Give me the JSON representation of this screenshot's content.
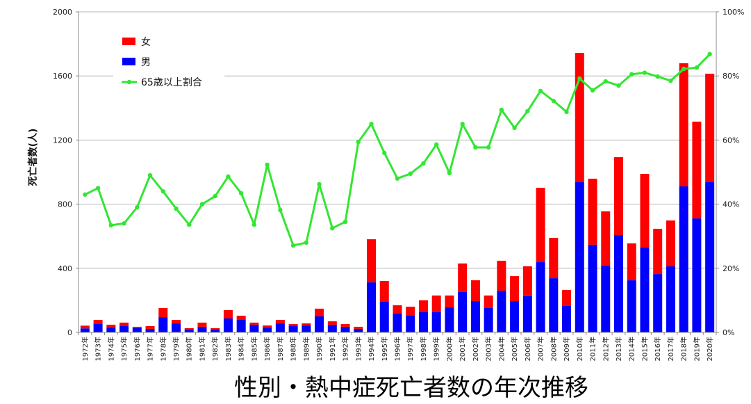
{
  "chart_data": {
    "type": "bar",
    "stacked": true,
    "title": "性別・熱中症死亡者数の年次推移",
    "ylabel": "死亡者数(人)",
    "ylim": [
      0,
      2000
    ],
    "yticks": [
      "0",
      "400",
      "800",
      "1200",
      "1600",
      "2000"
    ],
    "y2lim": [
      0,
      100
    ],
    "y2ticks": [
      "0%",
      "20%",
      "40%",
      "60%",
      "80%",
      "100%"
    ],
    "grid": true,
    "legend_position": "top-left",
    "categories": [
      "1972年",
      "1973年",
      "1974年",
      "1975年",
      "1976年",
      "1977年",
      "1978年",
      "1979年",
      "1980年",
      "1981年",
      "1982年",
      "1983年",
      "1984年",
      "1985年",
      "1986年",
      "1987年",
      "1988年",
      "1989年",
      "1990年",
      "1991年",
      "1992年",
      "1993年",
      "1994年",
      "1995年",
      "1996年",
      "1997年",
      "1998年",
      "1999年",
      "2000年",
      "2001年",
      "2002年",
      "2003年",
      "2004年",
      "2005年",
      "2006年",
      "2007年",
      "2008年",
      "2009年",
      "2010年",
      "2011年",
      "2012年",
      "2013年",
      "2014年",
      "2015年",
      "2016年",
      "2017年",
      "2018年",
      "2019年",
      "2020年"
    ],
    "series": [
      {
        "name": "女",
        "type": "bar",
        "color": "#ff0000",
        "values": [
          17,
          26,
          18,
          22,
          9,
          17,
          57,
          22,
          9,
          26,
          9,
          52,
          26,
          13,
          13,
          22,
          13,
          13,
          48,
          21,
          17,
          13,
          269,
          130,
          52,
          56,
          74,
          104,
          74,
          178,
          130,
          78,
          187,
          156,
          186,
          464,
          252,
          100,
          807,
          412,
          339,
          486,
          230,
          460,
          282,
          286,
          768,
          604,
          677
        ]
      },
      {
        "name": "男",
        "type": "bar",
        "color": "#0000ff",
        "values": [
          25,
          52,
          30,
          39,
          26,
          22,
          95,
          56,
          17,
          35,
          17,
          87,
          78,
          48,
          30,
          56,
          39,
          43,
          100,
          48,
          35,
          22,
          312,
          191,
          117,
          104,
          126,
          126,
          156,
          252,
          195,
          152,
          260,
          195,
          226,
          438,
          338,
          165,
          937,
          547,
          416,
          607,
          325,
          529,
          364,
          412,
          911,
          711,
          937
        ]
      },
      {
        "name": "65歳以上割合",
        "type": "line",
        "axis": "right",
        "color": "#33e633",
        "values": [
          43,
          45,
          33.4,
          34,
          39,
          49,
          44,
          38.6,
          33.6,
          40,
          42.5,
          48.6,
          43.4,
          33.6,
          52.3,
          38.2,
          27.1,
          28,
          46.2,
          32.5,
          34.5,
          59.4,
          65,
          56,
          48,
          49.5,
          52.7,
          58.6,
          49.7,
          65,
          57.7,
          57.7,
          69.4,
          63.8,
          69,
          75.3,
          72.2,
          68.8,
          79.2,
          75.5,
          78.3,
          77,
          80.5,
          81,
          79.8,
          78.5,
          82.2,
          82.6,
          86.8
        ]
      }
    ]
  }
}
